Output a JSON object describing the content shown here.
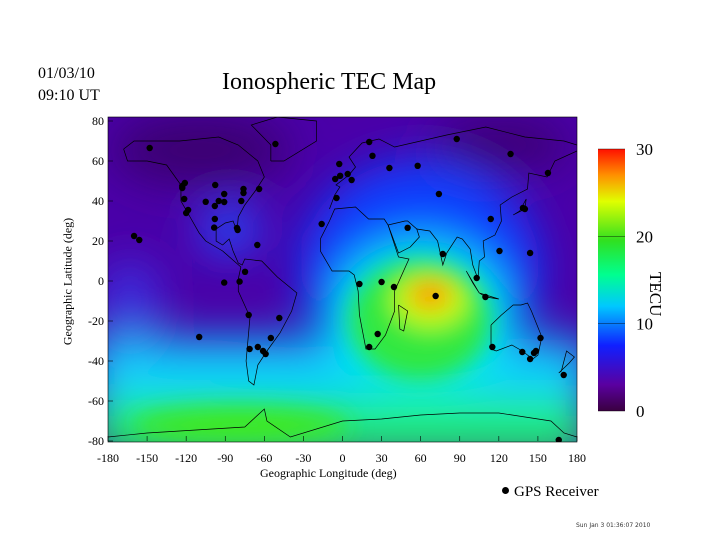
{
  "header": {
    "date": "01/03/10",
    "time": "09:10 UT",
    "title": "Ionospheric TEC Map"
  },
  "chart_data": {
    "type": "scatter",
    "title": "Ionospheric TEC Map",
    "xlabel": "Geographic Longitude (deg)",
    "ylabel": "Geographic Latitude (deg)",
    "xlim": [
      -180,
      180
    ],
    "ylim": [
      -80,
      80
    ],
    "xticks": [
      "-180",
      "-150",
      "-120",
      "-90",
      "-60",
      "-30",
      "0",
      "30",
      "60",
      "90",
      "120",
      "150",
      "180"
    ],
    "yticks": [
      "80",
      "60",
      "40",
      "20",
      "0",
      "-20",
      "-40",
      "-60",
      "-80"
    ],
    "colorbar": {
      "label": "TECU",
      "range": [
        0,
        30
      ],
      "ticks": [
        "30",
        "20",
        "10",
        "0"
      ],
      "colors": [
        "#3a0040",
        "#5a00a0",
        "#1020ff",
        "#00c0ff",
        "#00ff80",
        "#20e020",
        "#c0ff00",
        "#ffe000",
        "#ff6000",
        "#ff1000"
      ]
    },
    "tec_peak": {
      "lon": 65,
      "lat": -10,
      "value": 28
    },
    "legend": {
      "label": "GPS Receiver",
      "placement": "bottom-right"
    },
    "receivers": [
      [
        -148,
        66.5
      ],
      [
        -51.5,
        68.5
      ],
      [
        -160,
        22.5
      ],
      [
        -156,
        20.5
      ],
      [
        -121,
        49
      ],
      [
        -123,
        47.5
      ],
      [
        -123,
        46.5
      ],
      [
        -121.5,
        41
      ],
      [
        -118.5,
        35.5
      ],
      [
        -120,
        34
      ],
      [
        -97.7,
        48
      ],
      [
        -105,
        39.6
      ],
      [
        -98,
        37.5
      ],
      [
        -95,
        40
      ],
      [
        -90.8,
        43.5
      ],
      [
        -90.8,
        39.5
      ],
      [
        -76,
        46
      ],
      [
        -76,
        44
      ],
      [
        -77.7,
        40
      ],
      [
        -64,
        46
      ],
      [
        -98,
        31
      ],
      [
        -98.5,
        26.7
      ],
      [
        -81,
        26.5
      ],
      [
        -80.5,
        25.5
      ],
      [
        -65.4,
        18
      ],
      [
        -90.8,
        -0.8
      ],
      [
        -79,
        -0.3
      ],
      [
        -74.8,
        4.6
      ],
      [
        -72,
        -17
      ],
      [
        -110,
        -28
      ],
      [
        -71.3,
        -34
      ],
      [
        -65,
        -33
      ],
      [
        -61,
        -35
      ],
      [
        -59,
        -36.5
      ],
      [
        -55,
        -28.5
      ],
      [
        -48.5,
        -18.5
      ],
      [
        -2.5,
        58.5
      ],
      [
        -5.6,
        51
      ],
      [
        -1.8,
        52.6
      ],
      [
        4,
        53.5
      ],
      [
        7,
        50.5
      ],
      [
        -4.6,
        41.5
      ],
      [
        20.5,
        69.5
      ],
      [
        23,
        62.6
      ],
      [
        36,
        56.5
      ],
      [
        57.7,
        57.6
      ],
      [
        87.7,
        71
      ],
      [
        129,
        63.5
      ],
      [
        157.7,
        54
      ],
      [
        74,
        43.5
      ],
      [
        113.8,
        31
      ],
      [
        138.5,
        36.5
      ],
      [
        140,
        36
      ],
      [
        50,
        26.6
      ],
      [
        -16,
        28.5
      ],
      [
        77,
        13.5
      ],
      [
        120.5,
        15
      ],
      [
        144,
        14
      ],
      [
        103,
        1.5
      ],
      [
        109.7,
        -8
      ],
      [
        71.5,
        -7.5
      ],
      [
        13,
        -1.5
      ],
      [
        30,
        -0.5
      ],
      [
        39.5,
        -3
      ],
      [
        27,
        -26.5
      ],
      [
        20.5,
        -33
      ],
      [
        115,
        -33
      ],
      [
        138,
        -35.5
      ],
      [
        144,
        -39
      ],
      [
        147,
        -36
      ],
      [
        148.5,
        -35
      ],
      [
        152,
        -28.5
      ],
      [
        169.8,
        -47
      ],
      [
        166,
        -79.5
      ]
    ]
  },
  "footer": {
    "timestamp": "Sun Jan  3 01:36:07 2010"
  }
}
